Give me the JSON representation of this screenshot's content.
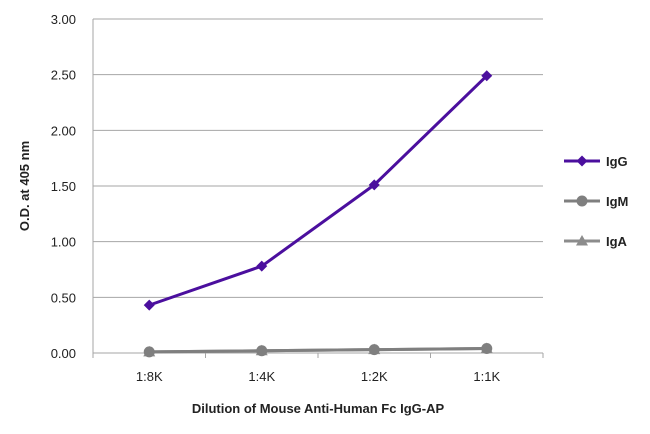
{
  "chart_data": {
    "type": "line",
    "xlabel": "Dilution of Mouse Anti-Human Fc IgG-AP",
    "ylabel": "O.D. at 405 nm",
    "categories": [
      "1:8K",
      "1:4K",
      "1:2K",
      "1:1K"
    ],
    "ylim": [
      0,
      3
    ],
    "yticks": [
      "0.00",
      "0.50",
      "1.00",
      "1.50",
      "2.00",
      "2.50",
      "3.00"
    ],
    "grid": "horizontal",
    "legend_position": "right",
    "series": [
      {
        "name": "IgG",
        "color": "#4B0F9E",
        "marker": "diamond",
        "values": [
          0.43,
          0.78,
          1.51,
          2.49
        ]
      },
      {
        "name": "IgM",
        "color": "#7F7F7F",
        "marker": "circle",
        "values": [
          0.01,
          0.02,
          0.03,
          0.04
        ]
      },
      {
        "name": "IgA",
        "color": "#8C8C8C",
        "marker": "triangle",
        "values": [
          0.01,
          0.02,
          0.03,
          0.04
        ]
      }
    ]
  }
}
